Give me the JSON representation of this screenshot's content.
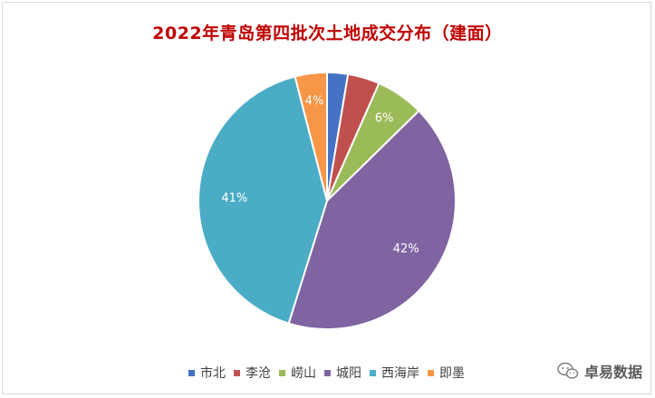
{
  "chart_data": {
    "type": "pie",
    "title": "2022年青岛第四批次土地成交分布（建面）",
    "slices": [
      {
        "name": "市北",
        "value": 2.6,
        "label": "",
        "color": "#4472c4"
      },
      {
        "name": "李沧",
        "value": 4.0,
        "label": "",
        "color": "#c0504d"
      },
      {
        "name": "崂山",
        "value": 6.0,
        "label": "6%",
        "color": "#9bbb59"
      },
      {
        "name": "城阳",
        "value": 42.0,
        "label": "42%",
        "color": "#8064a2"
      },
      {
        "name": "西海岸",
        "value": 41.0,
        "label": "41%",
        "color": "#4bacc6"
      },
      {
        "name": "即墨",
        "value": 4.0,
        "label": "4%",
        "color": "#f79646"
      }
    ],
    "legend_position": "bottom"
  },
  "watermark": {
    "text": "卓易数据",
    "icon": "wechat-icon"
  }
}
